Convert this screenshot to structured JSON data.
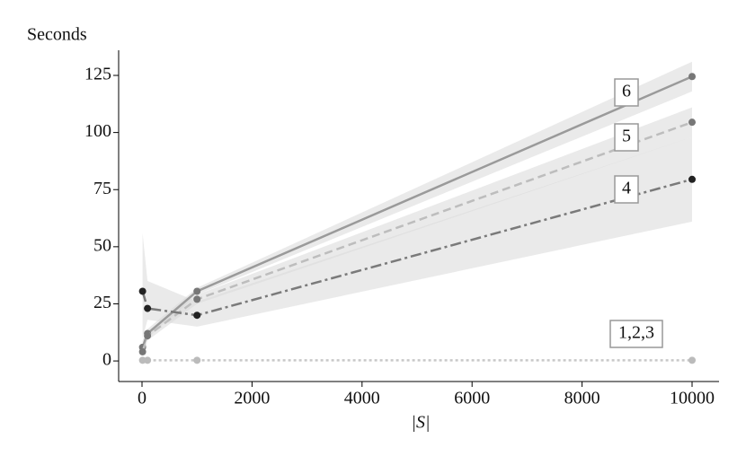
{
  "chart_data": {
    "type": "line",
    "ylabel": "Seconds",
    "xlabel": "|S|",
    "xlim": [
      -425,
      10490
    ],
    "ylim": [
      -9,
      136
    ],
    "xticks": [
      0,
      2000,
      4000,
      6000,
      8000,
      10000
    ],
    "yticks": [
      0,
      25,
      50,
      75,
      100,
      125
    ],
    "series": [
      {
        "name": "6",
        "color": "#9a9a9a",
        "marker_color": "#777777",
        "dash": "none",
        "x": [
          10,
          100,
          1000,
          10000
        ],
        "values": [
          6,
          12,
          30.5,
          124.5
        ],
        "lower": [
          3,
          10,
          29,
          118
        ],
        "upper": [
          9,
          14,
          32,
          131
        ]
      },
      {
        "name": "5",
        "color": "#bdbdbd",
        "marker_color": "#777777",
        "dash": "9,5",
        "x": [
          10,
          100,
          1000,
          10000
        ],
        "values": [
          4,
          11,
          27,
          104.5
        ],
        "lower": [
          2,
          9,
          25,
          98
        ],
        "upper": [
          6,
          13,
          29,
          111
        ]
      },
      {
        "name": "4",
        "color": "#7a7a7a",
        "marker_color": "#222222",
        "dash": "12,4,3,4",
        "x": [
          10,
          100,
          1000,
          10000
        ],
        "values": [
          30.5,
          23,
          20,
          79.5
        ],
        "lower": [
          10,
          18,
          15,
          61
        ],
        "upper": [
          56,
          35,
          26,
          98
        ]
      },
      {
        "name": "1,2,3",
        "color": "#c8c8c8",
        "marker_color": "#bbbbbb",
        "dash": "3,3",
        "x": [
          10,
          100,
          1000,
          10000
        ],
        "values": [
          0.3,
          0.3,
          0.3,
          0.3
        ]
      }
    ]
  }
}
